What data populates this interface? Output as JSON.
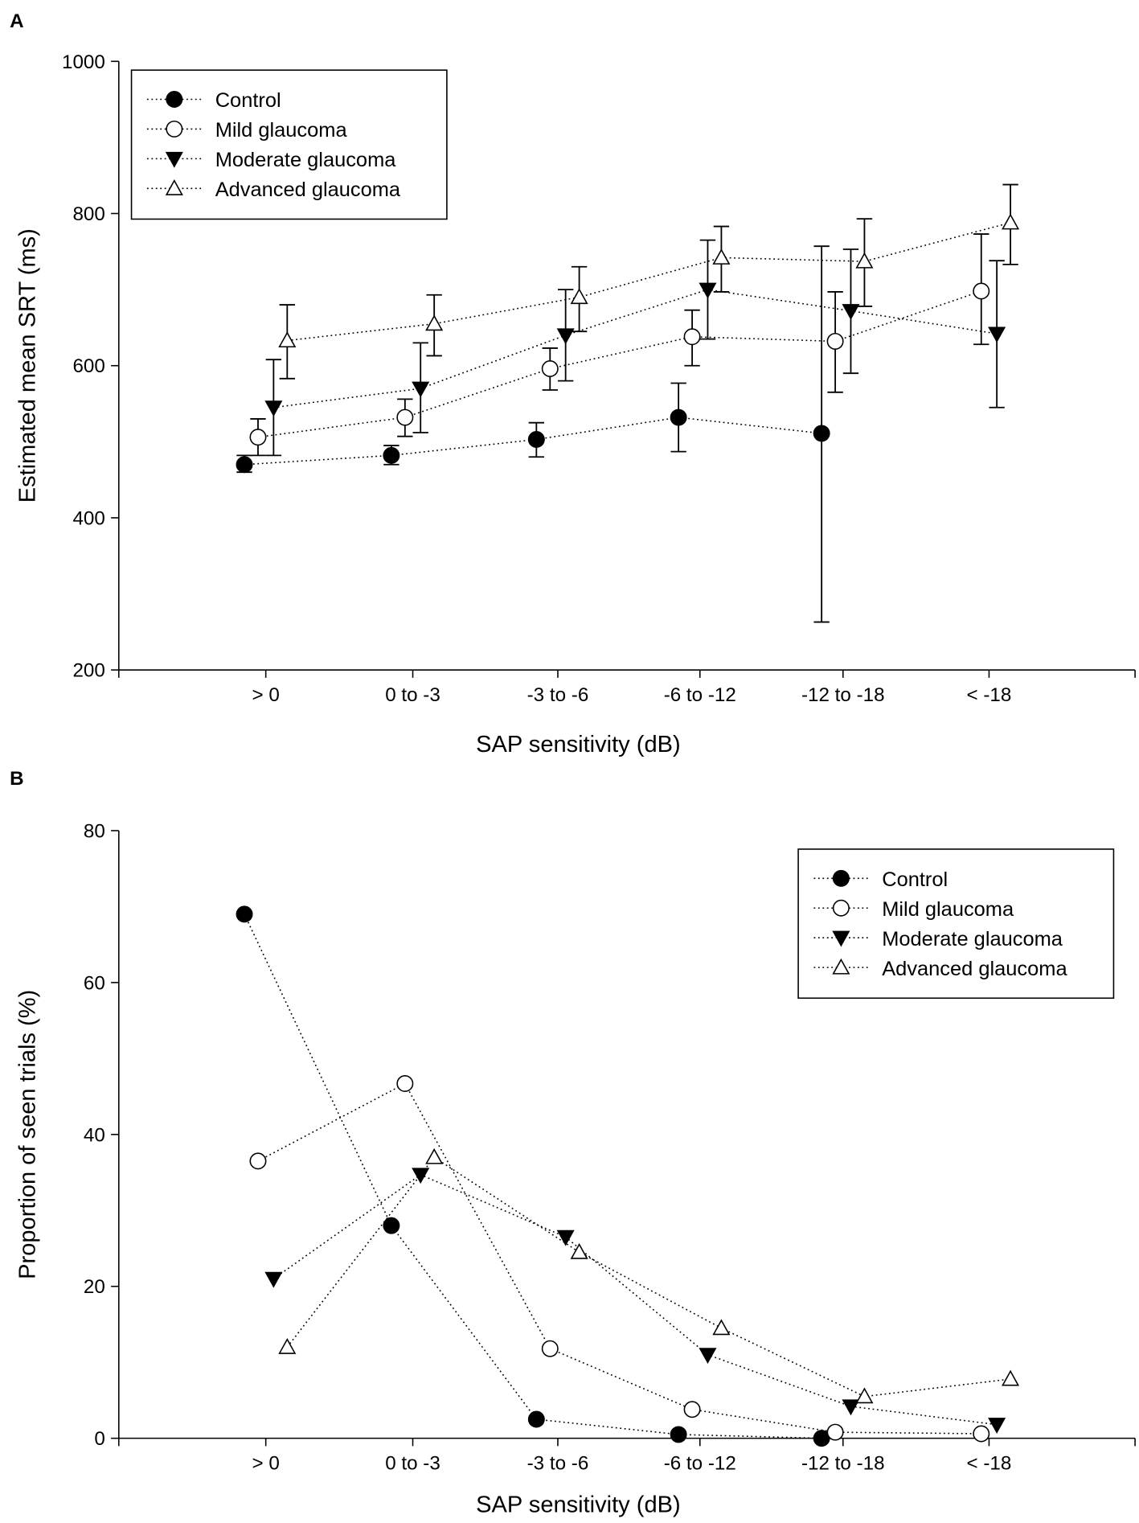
{
  "chart_data": [
    {
      "panel_label": "A",
      "type": "line",
      "xlabel": "SAP sensitivity (dB)",
      "ylabel": "Estimated mean SRT (ms)",
      "ylim": [
        200,
        1000
      ],
      "yticks": [
        200,
        400,
        600,
        800,
        1000
      ],
      "categories": [
        "> 0",
        "0 to -3",
        "-3 to -6",
        "-6 to -12",
        "-12 to -18",
        "< -18"
      ],
      "legend_position": "top-left",
      "error_bars": true,
      "series": [
        {
          "name": "Control",
          "marker": "filled-circle",
          "values": [
            470,
            482,
            503,
            532,
            511,
            null
          ],
          "err_low": [
            460,
            470,
            480,
            487,
            263,
            null
          ],
          "err_high": [
            482,
            495,
            525,
            577,
            757,
            null
          ]
        },
        {
          "name": "Mild glaucoma",
          "marker": "open-circle",
          "values": [
            506,
            532,
            596,
            638,
            632,
            698
          ],
          "err_low": [
            482,
            507,
            568,
            600,
            565,
            628
          ],
          "err_high": [
            530,
            556,
            623,
            673,
            697,
            773
          ]
        },
        {
          "name": "Moderate glaucoma",
          "marker": "filled-triangle-down",
          "values": [
            545,
            570,
            640,
            700,
            672,
            642
          ],
          "err_low": [
            482,
            512,
            580,
            635,
            590,
            545
          ],
          "err_high": [
            608,
            630,
            700,
            765,
            753,
            738
          ]
        },
        {
          "name": "Advanced glaucoma",
          "marker": "open-triangle-up",
          "values": [
            633,
            655,
            690,
            742,
            737,
            788
          ],
          "err_low": [
            583,
            613,
            645,
            697,
            678,
            733
          ],
          "err_high": [
            680,
            693,
            730,
            783,
            793,
            838
          ]
        }
      ]
    },
    {
      "panel_label": "B",
      "type": "line",
      "xlabel": "SAP sensitivity (dB)",
      "ylabel": "Proportion of seen trials (%)",
      "ylim": [
        0,
        80
      ],
      "yticks": [
        0,
        20,
        40,
        60,
        80
      ],
      "categories": [
        "> 0",
        "0 to -3",
        "-3 to -6",
        "-6 to -12",
        "-12 to -18",
        "< -18"
      ],
      "legend_position": "top-right",
      "error_bars": false,
      "series": [
        {
          "name": "Control",
          "marker": "filled-circle",
          "values": [
            69,
            28,
            2.5,
            0.5,
            0,
            null
          ]
        },
        {
          "name": "Mild glaucoma",
          "marker": "open-circle",
          "values": [
            36.5,
            46.7,
            11.8,
            3.8,
            0.8,
            0.6
          ]
        },
        {
          "name": "Moderate glaucoma",
          "marker": "filled-triangle-down",
          "values": [
            21,
            34.7,
            26.5,
            11,
            4.2,
            1.8
          ]
        },
        {
          "name": "Advanced glaucoma",
          "marker": "open-triangle-up",
          "values": [
            12,
            37,
            24.5,
            14.5,
            5.5,
            7.8
          ]
        }
      ]
    }
  ]
}
